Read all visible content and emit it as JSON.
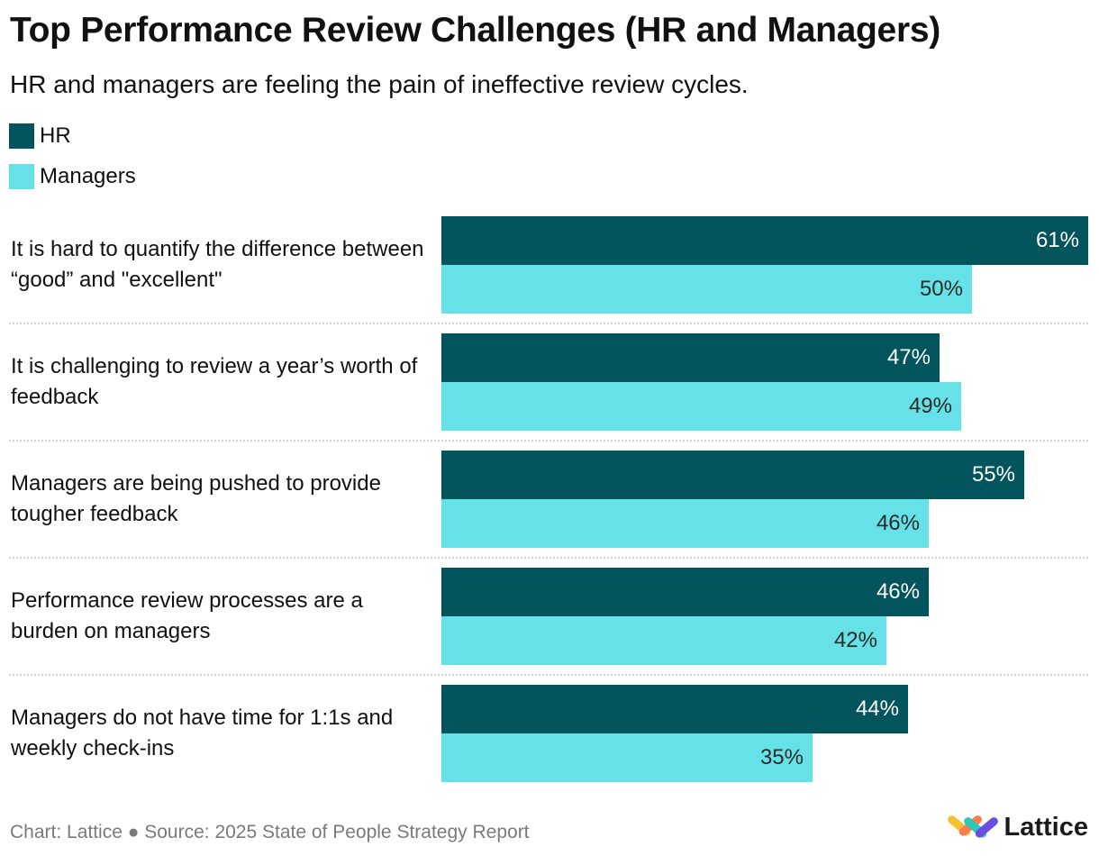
{
  "title": "Top Performance Review Challenges (HR and Managers)",
  "subtitle": "HR and managers are feeling the pain of ineffective review cycles.",
  "legend": [
    {
      "label": "HR",
      "color": "#02545d"
    },
    {
      "label": "Managers",
      "color": "#66e1e8"
    }
  ],
  "footer": {
    "source": "Chart: Lattice ● Source: 2025 State of People Strategy Report",
    "brand": "Lattice",
    "brand_icon": "lattice-logo-icon"
  },
  "chart_data": {
    "type": "bar",
    "orientation": "horizontal",
    "title": "Top Performance Review Challenges (HR and Managers)",
    "subtitle": "HR and managers are feeling the pain of ineffective review cycles.",
    "xlim": [
      0,
      61
    ],
    "grid": false,
    "legend_position": "top-left",
    "categories": [
      "It is hard to quantify the difference between “good” and \"excellent\"",
      "It is challenging to review a year’s worth of feedback",
      "Managers are being pushed to provide tougher feedback",
      "Performance review processes are a burden on managers",
      "Managers do not have time for 1:1s and weekly check-ins"
    ],
    "series": [
      {
        "name": "HR",
        "color": "#02545d",
        "label_color": "#ffffff",
        "values": [
          61,
          47,
          55,
          46,
          44
        ],
        "labels": [
          "61%",
          "47%",
          "55%",
          "46%",
          "44%"
        ]
      },
      {
        "name": "Managers",
        "color": "#66e1e8",
        "label_color": "#2a2a2a",
        "values": [
          50,
          49,
          46,
          42,
          35
        ],
        "labels": [
          "50%",
          "49%",
          "46%",
          "42%",
          "35%"
        ]
      }
    ]
  }
}
